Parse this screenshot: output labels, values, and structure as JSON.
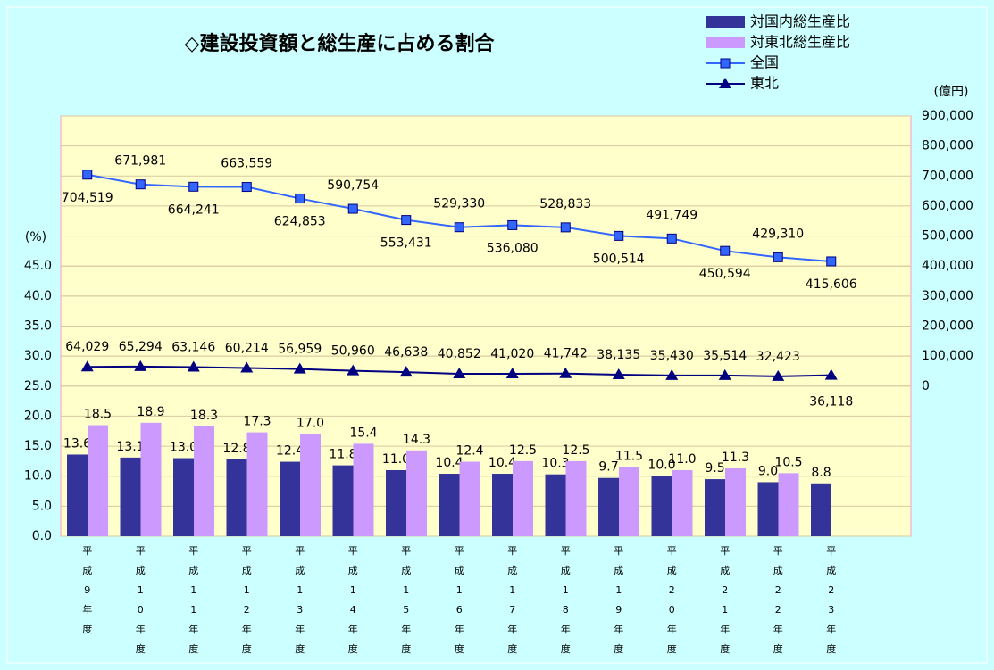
{
  "chart_data": {
    "type": "bar_line",
    "title": "◇建設投資額と総生産に占める割合",
    "y_label": "(%)",
    "y2_label": "(億円)",
    "categories": [
      "平成９年度",
      "平成10年度",
      "平成11年度",
      "平成12年度",
      "平成13年度",
      "平成14年度",
      "平成15年度",
      "平成16年度",
      "平成17年度",
      "平成18年度",
      "平成19年度",
      "平成20年度",
      "平成21年度",
      "平成22年度",
      "平成23年度",
      null
    ],
    "ylim": [
      0,
      70
    ],
    "yticks": [
      {
        "value": 0,
        "label": "0.0"
      },
      {
        "value": 5,
        "label": "5.0"
      },
      {
        "value": 10,
        "label": "10.0"
      },
      {
        "value": 15,
        "label": "15.0"
      },
      {
        "value": 20,
        "label": "20.0"
      },
      {
        "value": 25,
        "label": "25.0"
      },
      {
        "value": 30,
        "label": "30.0"
      },
      {
        "value": 35,
        "label": "35.0"
      },
      {
        "value": 40,
        "label": "40.0"
      },
      {
        "value": 45,
        "label": "45.0"
      }
    ],
    "y2lim": [
      -500000,
      900000
    ],
    "y2ticks": [
      0,
      {
        "value": 100000,
        "label": "100,000"
      },
      {
        "value": 200000,
        "label": "200,000"
      },
      {
        "value": 300000,
        "label": "300,000"
      },
      {
        "value": 400000,
        "label": "400,000"
      },
      {
        "value": 500000,
        "label": "500,000"
      },
      {
        "value": 600000,
        "label": "600,000"
      },
      {
        "value": 700000,
        "label": "700,000"
      },
      {
        "value": 800000,
        "label": "800,000"
      },
      {
        "value": 900000,
        "label": "900,000"
      }
    ],
    "grid": true,
    "series": [
      {
        "name": "対国内総生産比",
        "type": "bar",
        "color": "#333399",
        "values": [
          13.6,
          13.1,
          13.0,
          12.8,
          12.4,
          11.8,
          11.0,
          10.4,
          10.4,
          10.3,
          9.7,
          10.0,
          9.5,
          9.0,
          8.8,
          null
        ],
        "value_labels": [
          "13.6",
          "13.1",
          "13.0",
          "12.8",
          "12.4",
          "11.8",
          "11.0",
          "10.4",
          "10.4",
          "10.3",
          "9.7",
          "10.0",
          "9.5",
          "9.0",
          "8.8",
          null
        ]
      },
      {
        "name": "対東北総生産比",
        "type": "bar",
        "color": "#cc99ff",
        "values": [
          18.5,
          18.9,
          18.3,
          17.3,
          17.0,
          15.4,
          14.3,
          12.4,
          12.5,
          12.5,
          11.5,
          11.0,
          11.3,
          10.5,
          null,
          null
        ],
        "value_labels": [
          "18.5",
          "18.9",
          "18.3",
          "17.3",
          "17.0",
          "15.4",
          "14.3",
          "12.4",
          "12.5",
          "12.5",
          "11.5",
          "11.0",
          "11.3",
          "10.5",
          null,
          null
        ]
      },
      {
        "name": "全国",
        "type": "line",
        "marker": "square",
        "color": "#3366ff",
        "axis": "y2",
        "values": [
          704519,
          671981,
          664241,
          663559,
          624853,
          590754,
          553431,
          529330,
          536080,
          528833,
          500514,
          491749,
          450594,
          429310,
          415606,
          null
        ],
        "value_labels": [
          "704,519",
          "671,981",
          "664,241",
          "663,559",
          "624,853",
          "590,754",
          "553,431",
          "529,330",
          "536,080",
          "528,833",
          "500,514",
          "491,749",
          "450,594",
          "429,310",
          "415,606",
          null
        ]
      },
      {
        "name": "東北",
        "type": "line",
        "marker": "triangle",
        "color": "#000080",
        "axis": "y2",
        "values": [
          64029,
          65294,
          63146,
          60214,
          56959,
          50960,
          46638,
          40852,
          41020,
          41742,
          38135,
          35430,
          35514,
          32423,
          36118,
          null
        ],
        "value_labels": [
          "64,029",
          "65,294",
          "63,146",
          "60,214",
          "56,959",
          "50,960",
          "46,638",
          "40,852",
          "41,020",
          "41,742",
          "38,135",
          "35,430",
          "35,514",
          "32,423",
          "36,118",
          null
        ]
      }
    ]
  }
}
